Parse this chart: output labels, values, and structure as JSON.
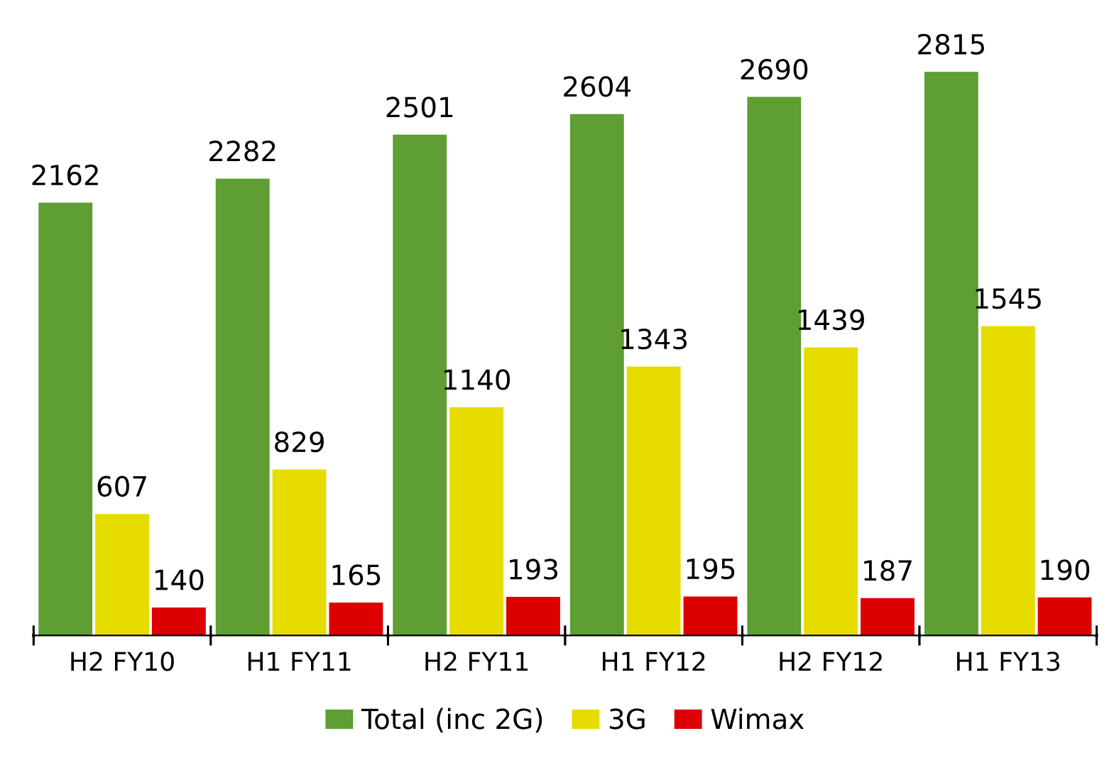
{
  "chart_data": {
    "type": "bar",
    "categories": [
      "H2 FY10",
      "H1 FY11",
      "H2 FY11",
      "H1 FY12",
      "H2 FY12",
      "H1 FY13"
    ],
    "series": [
      {
        "name": "Total (inc 2G)",
        "color": "#5e9e33",
        "values": [
          2162,
          2282,
          2501,
          2604,
          2690,
          2815
        ]
      },
      {
        "name": "3G",
        "color": "#e6dc00",
        "values": [
          607,
          829,
          1140,
          1343,
          1439,
          1545
        ]
      },
      {
        "name": "Wimax",
        "color": "#dd0000",
        "values": [
          140,
          165,
          193,
          195,
          187,
          190
        ]
      }
    ],
    "data_labels": true,
    "legend": "bottom",
    "grid": false
  }
}
